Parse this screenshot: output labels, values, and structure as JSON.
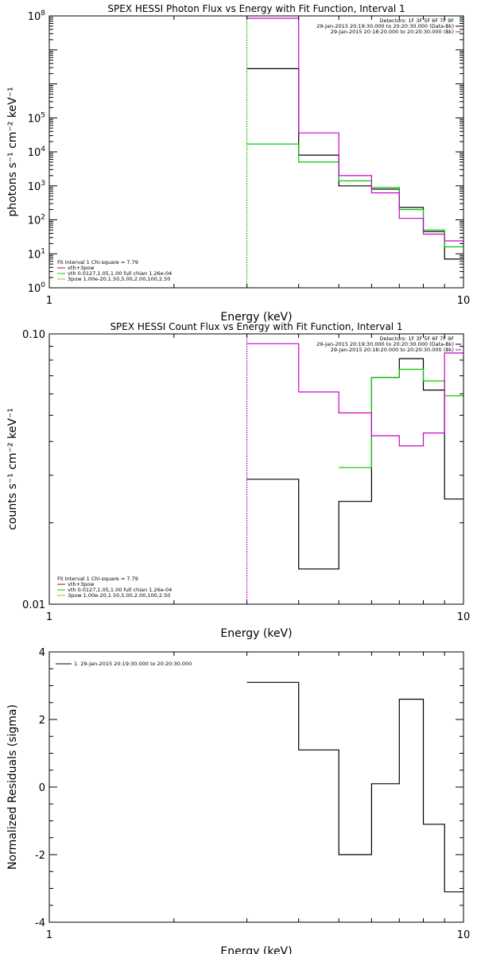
{
  "chart_data": [
    {
      "type": "line",
      "title": "SPEX HESSI Photon Flux vs Energy with Fit Function, Interval 1",
      "xlabel": "Energy (keV)",
      "ylabel": "photons s⁻¹ cm⁻² keV⁻¹",
      "xscale": "log",
      "yscale": "log",
      "xlim": [
        1,
        10
      ],
      "ylim": [
        1,
        100000000
      ],
      "x_ticks": [
        {
          "v": 1,
          "label": "1"
        },
        {
          "v": 10,
          "label": "10"
        }
      ],
      "y_ticks": [
        {
          "v": 1,
          "base": "10",
          "exp": "0"
        },
        {
          "v": 10,
          "base": "10",
          "exp": "1"
        },
        {
          "v": 100,
          "base": "10",
          "exp": "2"
        },
        {
          "v": 1000,
          "base": "10",
          "exp": "3"
        },
        {
          "v": 10000,
          "base": "10",
          "exp": "4"
        },
        {
          "v": 100000,
          "base": "10",
          "exp": "5"
        },
        {
          "v": 100000000,
          "base": "10",
          "exp": "8"
        }
      ],
      "bin_edges": [
        3,
        4,
        5,
        6,
        7,
        8,
        9,
        10
      ],
      "series": [
        {
          "color": "#000000",
          "values": [
            2800000,
            8000,
            1000,
            800,
            230,
            45,
            7
          ]
        },
        {
          "color": "#00cc00",
          "values": [
            17000,
            5000,
            1400,
            900,
            200,
            50,
            16
          ]
        },
        {
          "color": "#cc00cc",
          "values": [
            85000000,
            36000,
            2000,
            620,
            110,
            38,
            24
          ]
        }
      ],
      "vline": {
        "x": 3,
        "color": "#00cc00"
      },
      "header": [
        "Detectors: 1F 3F 5F 6F 7F 9F",
        "29-Jan-2015 20:19:30.000 to 20:20:30.000 (Data-Bk)",
        "29-Jan-2015 20:18:20.000 to 20:20:30.000 (Bk)"
      ],
      "legend": {
        "fit_line": "Fit Interval 1    Chi-square = 7.79",
        "items": [
          {
            "text": "vth+3pow",
            "color": "#cc0000"
          },
          {
            "text": "vth 0.0127,1.05,1.00  full chian 1.26e-04",
            "color": "#00cc00"
          },
          {
            "text": "3pow 1.00e-20,1.50,5.00,2.00,100,2.50",
            "color": "#ccaa00"
          }
        ]
      }
    },
    {
      "type": "line",
      "title": "SPEX HESSI Count Flux vs Energy with Fit Function, Interval 1",
      "xlabel": "Energy (keV)",
      "ylabel": "counts s⁻¹ cm⁻² keV⁻¹",
      "xscale": "log",
      "yscale": "log",
      "xlim": [
        1,
        10
      ],
      "ylim": [
        0.01,
        0.1
      ],
      "x_ticks": [
        {
          "v": 1,
          "label": "1"
        },
        {
          "v": 10,
          "label": "10"
        }
      ],
      "y_ticks": [
        {
          "v": 0.01,
          "label": "0.01"
        },
        {
          "v": 0.1,
          "label": "0.10"
        }
      ],
      "bin_edges": [
        3,
        4,
        5,
        6,
        7,
        8,
        9,
        10
      ],
      "series": [
        {
          "color": "#000000",
          "values": [
            0.029,
            0.0135,
            0.024,
            0.069,
            0.081,
            0.062,
            0.0245
          ]
        },
        {
          "color": "#00cc00",
          "values": [
            null,
            null,
            0.032,
            0.069,
            0.074,
            0.067,
            0.059
          ]
        },
        {
          "color": "#cc00cc",
          "values": [
            0.092,
            0.061,
            0.051,
            0.042,
            0.0385,
            0.043,
            0.085
          ]
        }
      ],
      "vline": {
        "x": 3,
        "color": "#cc00cc"
      },
      "header": [
        "Detectors: 1F 3F 5F 6F 7F 9F",
        "29-Jan-2015 20:19:30.000 to 20:20:30.000 (Data-Bk)",
        "29-Jan-2015 20:18:20.000 to 20:20:30.000 (Bk)"
      ],
      "legend": {
        "fit_line": "Fit Interval 1    Chi-square = 7.79",
        "items": [
          {
            "text": "vth+3pow",
            "color": "#cc0000"
          },
          {
            "text": "vth 0.0127,1.05,1.00  full chian 1.26e-04",
            "color": "#00cc00"
          },
          {
            "text": "3pow 1.00e-20,1.50,5.00,2.00,100,2.50",
            "color": "#ccaa00"
          }
        ]
      }
    },
    {
      "type": "line",
      "title": "",
      "xlabel": "Energy (keV)",
      "ylabel": "Normalized Residuals (sigma)",
      "xscale": "log",
      "yscale": "linear",
      "xlim": [
        1,
        10
      ],
      "ylim": [
        -4,
        4
      ],
      "x_ticks": [
        {
          "v": 1,
          "label": "1"
        },
        {
          "v": 10,
          "label": "10"
        }
      ],
      "y_ticks": [
        {
          "v": -4,
          "label": "-4"
        },
        {
          "v": -2,
          "label": "-2"
        },
        {
          "v": 0,
          "label": "0"
        },
        {
          "v": 2,
          "label": "2"
        },
        {
          "v": 4,
          "label": "4"
        }
      ],
      "bin_edges": [
        3,
        4,
        5,
        6,
        7,
        8,
        9,
        10
      ],
      "series": [
        {
          "color": "#000000",
          "values": [
            3.1,
            1.1,
            -2.0,
            0.1,
            2.6,
            -1.1,
            -3.1
          ]
        }
      ],
      "legend": {
        "items": [
          {
            "text": "1. 29-Jan-2015 20:19:30.000 to 20:20:30.000",
            "color": "#000000"
          }
        ]
      }
    }
  ]
}
